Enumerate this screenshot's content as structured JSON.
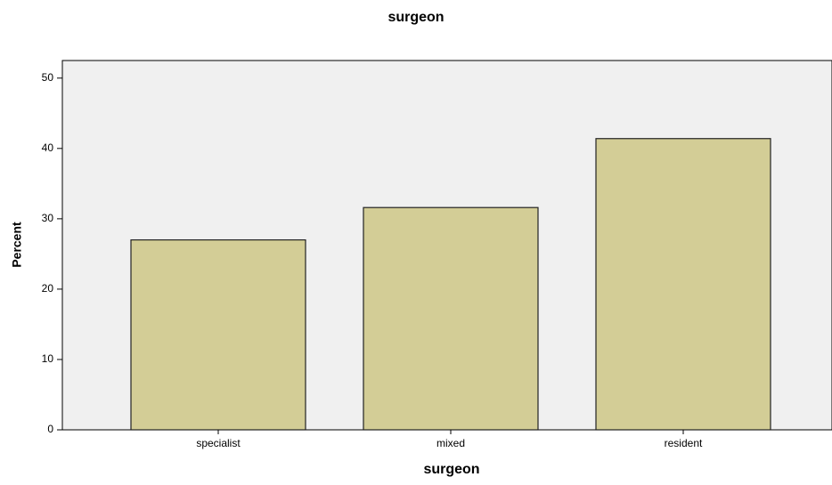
{
  "chart_data": {
    "type": "bar",
    "title": "surgeon",
    "x_label": "surgeon",
    "y_label": "Percent",
    "categories": [
      "specialist",
      "mixed",
      "resident"
    ],
    "values": [
      27.0,
      31.6,
      41.4
    ],
    "color": "#d3cd96",
    "ylim": [
      0,
      52.5
    ],
    "yticks": [
      0,
      10,
      20,
      30,
      40,
      50
    ],
    "grid": false
  }
}
